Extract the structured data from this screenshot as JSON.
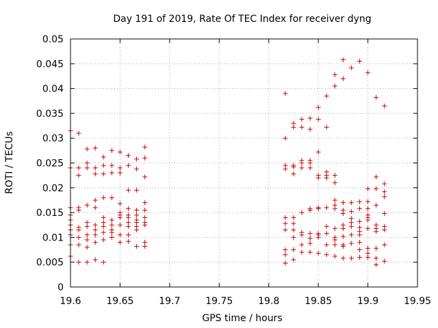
{
  "chart_data": {
    "type": "scatter",
    "title": "Day 191 of 2019, Rate Of TEC Index for receiver dyng",
    "xlabel": "GPS time / hours",
    "ylabel": "ROTI / TECUs",
    "xlim": [
      19.6,
      19.95
    ],
    "ylim": [
      0,
      0.05
    ],
    "x_ticks": [
      "19.6",
      "19.65",
      "19.7",
      "19.75",
      "19.8",
      "19.85",
      "19.9",
      "19.95"
    ],
    "y_ticks": [
      "0",
      "0.005",
      "0.01",
      "0.015",
      "0.02",
      "0.025",
      "0.03",
      "0.035",
      "0.04",
      "0.045",
      "0.05"
    ],
    "grid": true,
    "marker": "+",
    "series_color": "#cc0000",
    "points": [
      [
        19.6,
        0.0315
      ],
      [
        19.6,
        0.024
      ],
      [
        19.6,
        0.016
      ],
      [
        19.6,
        0.0145
      ],
      [
        19.6,
        0.0135
      ],
      [
        19.6,
        0.0125
      ],
      [
        19.6,
        0.0115
      ],
      [
        19.6,
        0.0105
      ],
      [
        19.6,
        0.0085
      ],
      [
        19.6,
        0.0062
      ],
      [
        19.6083,
        0.031
      ],
      [
        19.6083,
        0.024
      ],
      [
        19.6083,
        0.0225
      ],
      [
        19.6083,
        0.016
      ],
      [
        19.6083,
        0.0155
      ],
      [
        19.6083,
        0.012
      ],
      [
        19.6083,
        0.0115
      ],
      [
        19.6083,
        0.01
      ],
      [
        19.6083,
        0.0085
      ],
      [
        19.6083,
        0.005
      ],
      [
        19.6167,
        0.0278
      ],
      [
        19.6167,
        0.025
      ],
      [
        19.6167,
        0.024
      ],
      [
        19.6167,
        0.0165
      ],
      [
        19.6167,
        0.013
      ],
      [
        19.6167,
        0.0122
      ],
      [
        19.6167,
        0.0105
      ],
      [
        19.6167,
        0.0095
      ],
      [
        19.6167,
        0.008
      ],
      [
        19.6167,
        0.005
      ],
      [
        19.625,
        0.028
      ],
      [
        19.625,
        0.024
      ],
      [
        19.625,
        0.0228
      ],
      [
        19.625,
        0.0175
      ],
      [
        19.625,
        0.016
      ],
      [
        19.625,
        0.0125
      ],
      [
        19.625,
        0.0115
      ],
      [
        19.625,
        0.0105
      ],
      [
        19.625,
        0.009
      ],
      [
        19.625,
        0.0055
      ],
      [
        19.6333,
        0.0262
      ],
      [
        19.6333,
        0.0245
      ],
      [
        19.6333,
        0.0228
      ],
      [
        19.6333,
        0.018
      ],
      [
        19.6333,
        0.014
      ],
      [
        19.6333,
        0.013
      ],
      [
        19.6333,
        0.0122
      ],
      [
        19.6333,
        0.011
      ],
      [
        19.6333,
        0.0095
      ],
      [
        19.6333,
        0.005
      ],
      [
        19.6417,
        0.0275
      ],
      [
        19.6417,
        0.0245
      ],
      [
        19.6417,
        0.023
      ],
      [
        19.6417,
        0.018
      ],
      [
        19.6417,
        0.0135
      ],
      [
        19.6417,
        0.0125
      ],
      [
        19.6417,
        0.0115
      ],
      [
        19.6417,
        0.011
      ],
      [
        19.6417,
        0.01
      ],
      [
        19.65,
        0.0272
      ],
      [
        19.65,
        0.024
      ],
      [
        19.65,
        0.023
      ],
      [
        19.65,
        0.0168
      ],
      [
        19.65,
        0.015
      ],
      [
        19.65,
        0.0145
      ],
      [
        19.65,
        0.014
      ],
      [
        19.65,
        0.0125
      ],
      [
        19.65,
        0.0105
      ],
      [
        19.65,
        0.009
      ],
      [
        19.6583,
        0.0265
      ],
      [
        19.6583,
        0.0245
      ],
      [
        19.6583,
        0.0195
      ],
      [
        19.6583,
        0.0158
      ],
      [
        19.6583,
        0.0145
      ],
      [
        19.6583,
        0.014
      ],
      [
        19.6583,
        0.013
      ],
      [
        19.6583,
        0.0122
      ],
      [
        19.6583,
        0.0105
      ],
      [
        19.6583,
        0.0092
      ],
      [
        19.6667,
        0.0258
      ],
      [
        19.6667,
        0.0238
      ],
      [
        19.6667,
        0.0195
      ],
      [
        19.6667,
        0.0155
      ],
      [
        19.6667,
        0.0145
      ],
      [
        19.6667,
        0.0135
      ],
      [
        19.6667,
        0.013
      ],
      [
        19.6667,
        0.0122
      ],
      [
        19.6667,
        0.0115
      ],
      [
        19.6667,
        0.0082
      ],
      [
        19.675,
        0.0282
      ],
      [
        19.675,
        0.026
      ],
      [
        19.675,
        0.0222
      ],
      [
        19.675,
        0.017
      ],
      [
        19.675,
        0.0155
      ],
      [
        19.675,
        0.014
      ],
      [
        19.675,
        0.013
      ],
      [
        19.675,
        0.0125
      ],
      [
        19.675,
        0.009
      ],
      [
        19.675,
        0.0082
      ],
      [
        19.8167,
        0.039
      ],
      [
        19.8167,
        0.03
      ],
      [
        19.8167,
        0.0245
      ],
      [
        19.8167,
        0.0238
      ],
      [
        19.8167,
        0.014
      ],
      [
        19.8167,
        0.0128
      ],
      [
        19.8167,
        0.0115
      ],
      [
        19.8167,
        0.0075
      ],
      [
        19.8167,
        0.0065
      ],
      [
        19.8167,
        0.0048
      ],
      [
        19.825,
        0.033
      ],
      [
        19.825,
        0.0322
      ],
      [
        19.825,
        0.0245
      ],
      [
        19.825,
        0.0242
      ],
      [
        19.825,
        0.0228
      ],
      [
        19.825,
        0.014
      ],
      [
        19.825,
        0.0128
      ],
      [
        19.825,
        0.0115
      ],
      [
        19.825,
        0.01
      ],
      [
        19.825,
        0.0075
      ],
      [
        19.825,
        0.0055
      ],
      [
        19.8333,
        0.0338
      ],
      [
        19.8333,
        0.0322
      ],
      [
        19.8333,
        0.0255
      ],
      [
        19.8333,
        0.025
      ],
      [
        19.8333,
        0.024
      ],
      [
        19.8333,
        0.015
      ],
      [
        19.8333,
        0.011
      ],
      [
        19.8333,
        0.0105
      ],
      [
        19.8333,
        0.0085
      ],
      [
        19.8333,
        0.007
      ],
      [
        19.8417,
        0.034
      ],
      [
        19.8417,
        0.0318
      ],
      [
        19.8417,
        0.0255
      ],
      [
        19.8417,
        0.025
      ],
      [
        19.8417,
        0.024
      ],
      [
        19.8417,
        0.0158
      ],
      [
        19.8417,
        0.0155
      ],
      [
        19.8417,
        0.0108
      ],
      [
        19.8417,
        0.0098
      ],
      [
        19.8417,
        0.0088
      ],
      [
        19.8417,
        0.007
      ],
      [
        19.85,
        0.0362
      ],
      [
        19.85,
        0.0338
      ],
      [
        19.85,
        0.0272
      ],
      [
        19.85,
        0.0225
      ],
      [
        19.85,
        0.022
      ],
      [
        19.85,
        0.016
      ],
      [
        19.85,
        0.0158
      ],
      [
        19.85,
        0.0108
      ],
      [
        19.85,
        0.0105
      ],
      [
        19.85,
        0.01
      ],
      [
        19.85,
        0.0068
      ],
      [
        19.8583,
        0.0385
      ],
      [
        19.8583,
        0.0322
      ],
      [
        19.8583,
        0.0232
      ],
      [
        19.8583,
        0.0225
      ],
      [
        19.8583,
        0.022
      ],
      [
        19.8583,
        0.016
      ],
      [
        19.8583,
        0.0122
      ],
      [
        19.8583,
        0.0108
      ],
      [
        19.8583,
        0.0085
      ],
      [
        19.8583,
        0.0065
      ],
      [
        19.8667,
        0.0428
      ],
      [
        19.8667,
        0.0405
      ],
      [
        19.8667,
        0.0225
      ],
      [
        19.8667,
        0.021
      ],
      [
        19.8667,
        0.0175
      ],
      [
        19.8667,
        0.0165
      ],
      [
        19.8667,
        0.0158
      ],
      [
        19.8667,
        0.0118
      ],
      [
        19.8667,
        0.01
      ],
      [
        19.8667,
        0.0095
      ],
      [
        19.8667,
        0.0085
      ],
      [
        19.8667,
        0.0062
      ],
      [
        19.875,
        0.0458
      ],
      [
        19.875,
        0.042
      ],
      [
        19.875,
        0.017
      ],
      [
        19.875,
        0.0155
      ],
      [
        19.875,
        0.0148
      ],
      [
        19.875,
        0.0125
      ],
      [
        19.875,
        0.0118
      ],
      [
        19.875,
        0.0102
      ],
      [
        19.875,
        0.0085
      ],
      [
        19.875,
        0.0082
      ],
      [
        19.875,
        0.0058
      ],
      [
        19.8833,
        0.0442
      ],
      [
        19.8833,
        0.017
      ],
      [
        19.8833,
        0.0152
      ],
      [
        19.8833,
        0.0138
      ],
      [
        19.8833,
        0.013
      ],
      [
        19.8833,
        0.0122
      ],
      [
        19.8833,
        0.0105
      ],
      [
        19.8833,
        0.0088
      ],
      [
        19.8833,
        0.0058
      ],
      [
        19.8917,
        0.0455
      ],
      [
        19.8917,
        0.0172
      ],
      [
        19.8917,
        0.0158
      ],
      [
        19.8917,
        0.0132
      ],
      [
        19.8917,
        0.012
      ],
      [
        19.8917,
        0.0112
      ],
      [
        19.8917,
        0.0105
      ],
      [
        19.8917,
        0.009
      ],
      [
        19.8917,
        0.0075
      ],
      [
        19.8917,
        0.006
      ],
      [
        19.9,
        0.0432
      ],
      [
        19.9,
        0.0198
      ],
      [
        19.9,
        0.0172
      ],
      [
        19.9,
        0.0158
      ],
      [
        19.9,
        0.0145
      ],
      [
        19.9,
        0.014
      ],
      [
        19.9,
        0.0135
      ],
      [
        19.9,
        0.0118
      ],
      [
        19.9,
        0.0078
      ],
      [
        19.9,
        0.0068
      ],
      [
        19.9,
        0.006
      ],
      [
        19.9083,
        0.0382
      ],
      [
        19.9083,
        0.0222
      ],
      [
        19.9083,
        0.0198
      ],
      [
        19.9083,
        0.0165
      ],
      [
        19.9083,
        0.0125
      ],
      [
        19.9083,
        0.0118
      ],
      [
        19.9083,
        0.0112
      ],
      [
        19.9083,
        0.0078
      ],
      [
        19.9083,
        0.0058
      ],
      [
        19.9083,
        0.0045
      ],
      [
        19.9167,
        0.0365
      ],
      [
        19.9167,
        0.0208
      ],
      [
        19.9167,
        0.0192
      ],
      [
        19.9167,
        0.0182
      ],
      [
        19.9167,
        0.0148
      ],
      [
        19.9167,
        0.0122
      ],
      [
        19.9167,
        0.0115
      ],
      [
        19.9167,
        0.0085
      ],
      [
        19.9167,
        0.0052
      ]
    ]
  }
}
